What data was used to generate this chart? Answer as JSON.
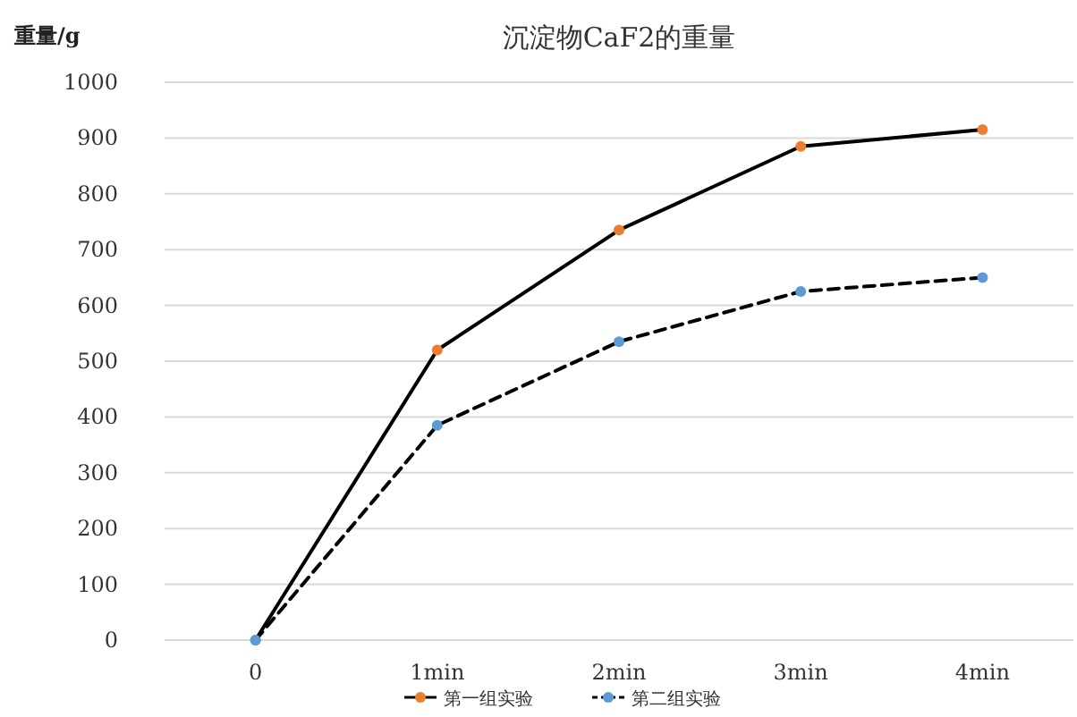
{
  "chart_data": {
    "type": "line",
    "title": "沉淀物CaF2的重量",
    "ylabel": "重量/g",
    "categories": [
      "0",
      "1min",
      "2min",
      "3min",
      "4min"
    ],
    "series": [
      {
        "name": "第一组实验",
        "color": "#000000",
        "colors": [
          "#ed7d31",
          "#ed7d31",
          "#ed7d31",
          "#ed7d31",
          "#ed7d31"
        ],
        "line_style": "solid",
        "values": [
          0,
          520,
          735,
          885,
          915
        ]
      },
      {
        "name": "第二组实验",
        "color": "#000000",
        "colors": [
          "#5b9bd5",
          "#5b9bd5",
          "#5b9bd5",
          "#5b9bd5",
          "#5b9bd5"
        ],
        "line_style": "dashed",
        "values": [
          0,
          385,
          535,
          625,
          650
        ]
      }
    ],
    "ylim": [
      0,
      1000
    ],
    "yticks": [
      0,
      100,
      200,
      300,
      400,
      500,
      600,
      700,
      800,
      900,
      1000
    ],
    "grid": "y",
    "legend": "bottom",
    "marker": "circle"
  }
}
